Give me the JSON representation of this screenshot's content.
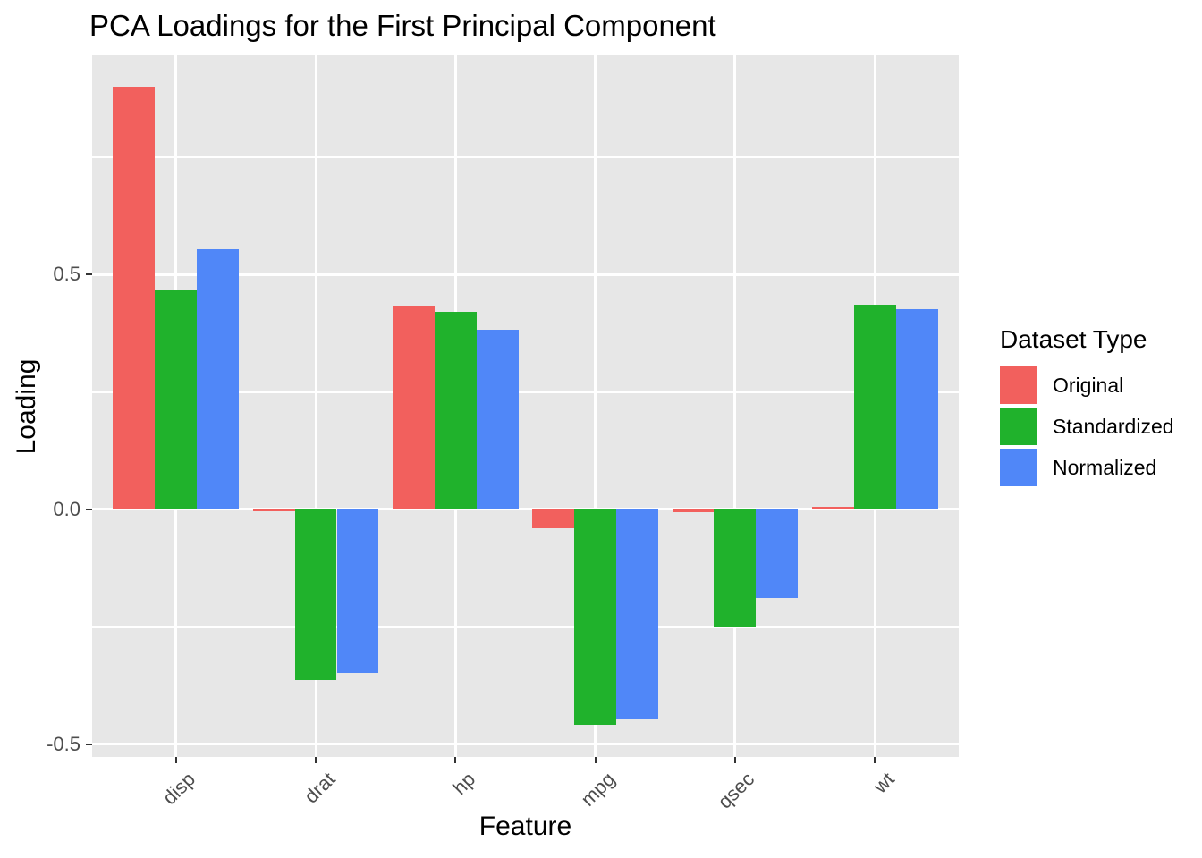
{
  "chart_data": {
    "type": "bar",
    "title": "PCA Loadings for the First Principal Component",
    "xlabel": "Feature",
    "ylabel": "Loading",
    "categories": [
      "disp",
      "drat",
      "hp",
      "mpg",
      "qsec",
      "wt"
    ],
    "series": [
      {
        "name": "Original",
        "color": "#F2605D",
        "values": [
          0.9,
          -0.004,
          0.433,
          -0.04,
          -0.006,
          0.006
        ]
      },
      {
        "name": "Standardized",
        "color": "#20B22C",
        "values": [
          0.465,
          -0.363,
          0.421,
          -0.459,
          -0.252,
          0.436
        ]
      },
      {
        "name": "Normalized",
        "color": "#5087F8",
        "values": [
          0.554,
          -0.349,
          0.383,
          -0.448,
          -0.188,
          0.425
        ]
      }
    ],
    "legend_title": "Dataset Type",
    "legend_position": "right",
    "ylim": [
      -0.527,
      0.966
    ],
    "yticks_major": [
      0.5,
      0.0,
      -0.5
    ],
    "ytick_labels": [
      "0.5",
      "0.0",
      "-0.5"
    ],
    "yticks_minor": [
      0.75,
      0.25,
      -0.25
    ],
    "x_tick_rotation": 45,
    "grid": true,
    "panel_bg": "#E7E7E7",
    "grid_color": "#FFFFFF",
    "tick_label_color": "#4D4D4D"
  }
}
